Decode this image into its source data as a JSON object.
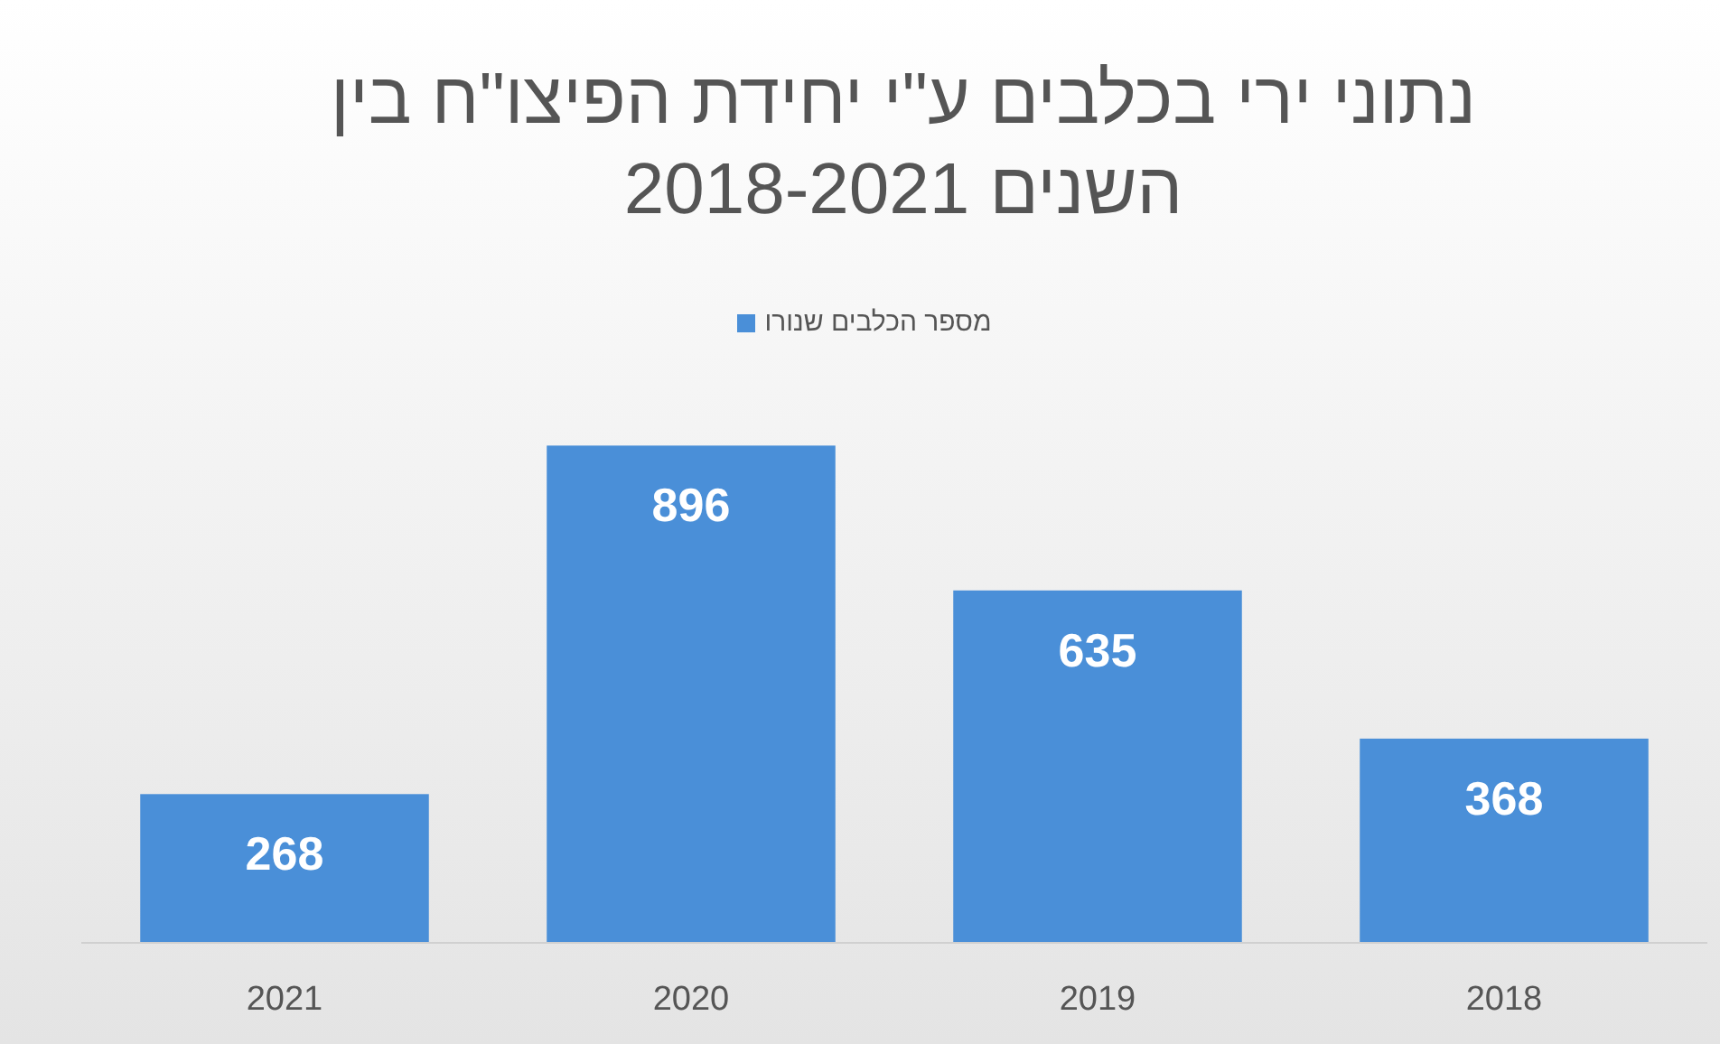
{
  "chart_data": {
    "type": "bar",
    "title": "נתוני ירי בכלבים ע\"י יחידת הפיצו\"ח בין השנים 2018-2021",
    "categories": [
      "2021",
      "2020",
      "2019",
      "2018"
    ],
    "series": [
      {
        "name": "מספר הכלבים שנורו",
        "color": "#4a8fd8",
        "values": [
          268,
          896,
          635,
          368
        ]
      }
    ],
    "data_labels": true,
    "legend": "top",
    "grid": false
  }
}
